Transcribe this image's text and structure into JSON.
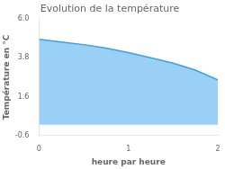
{
  "chart_data": {
    "type": "area",
    "title": "Evolution de la température",
    "xlabel": "heure par heure",
    "ylabel": "Température en °C",
    "x": [
      0,
      0.25,
      0.5,
      0.75,
      1.0,
      1.25,
      1.5,
      1.75,
      2.0
    ],
    "values": [
      4.85,
      4.7,
      4.55,
      4.35,
      4.1,
      3.8,
      3.5,
      3.1,
      2.55
    ],
    "xlim": [
      0,
      2
    ],
    "ylim": [
      -0.6,
      6.0
    ],
    "xticks": [
      0,
      1,
      2
    ],
    "yticks": [
      -0.6,
      1.6,
      3.8,
      {
        "value": 6.0,
        "label": "6.0"
      }
    ],
    "grid": false
  }
}
